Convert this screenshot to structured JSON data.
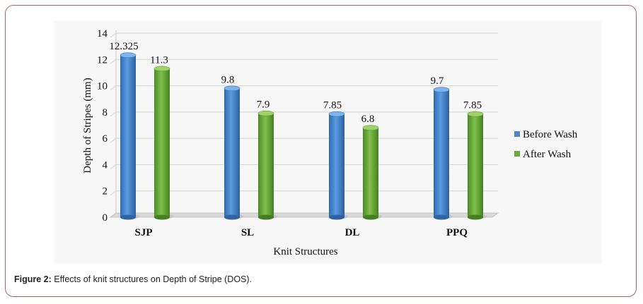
{
  "caption": {
    "label": "Figure 2:",
    "text": " Effects of knit structures on Depth of Stripe (DOS)."
  },
  "chart_data": {
    "type": "bar",
    "title": "",
    "xlabel": "Knit Structures",
    "ylabel": "Depth of Stripes (mm)",
    "ylim": [
      0,
      14
    ],
    "yticks": [
      "0",
      "2",
      "4",
      "6",
      "8",
      "10",
      "12",
      "14"
    ],
    "grid": true,
    "legend_position": "right",
    "categories": [
      "SJP",
      "SL",
      "DL",
      "PPQ"
    ],
    "series": [
      {
        "name": "Before Wash",
        "color": "#4a86c8",
        "values": [
          12.325,
          9.8,
          7.85,
          9.7
        ],
        "labels": [
          "12.325",
          "9.8",
          "7.85",
          "9.7"
        ]
      },
      {
        "name": "After Wash",
        "color": "#6aaa3a",
        "values": [
          11.3,
          7.9,
          6.8,
          7.85
        ],
        "labels": [
          "11.3",
          "7.9",
          "6.8",
          "7.85"
        ]
      }
    ]
  }
}
